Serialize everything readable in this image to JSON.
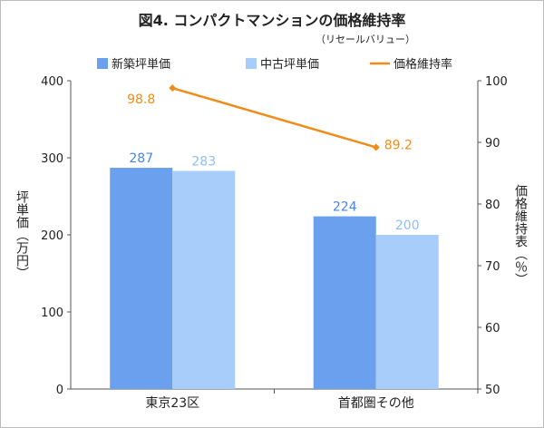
{
  "chart_data": {
    "type": "bar",
    "title": "図4. コンパクトマンションの価格維持率",
    "subtitle": "（リセールバリュー）",
    "categories": [
      "東京23区",
      "首都圏その他"
    ],
    "series": [
      {
        "name": "新築坪単価",
        "type": "bar",
        "axis": "left",
        "color": "#6aa0ee",
        "values": [
          287,
          224
        ]
      },
      {
        "name": "中古坪単価",
        "type": "bar",
        "axis": "left",
        "color": "#a9cdfb",
        "values": [
          283,
          200
        ]
      },
      {
        "name": "価格維持率",
        "type": "line",
        "axis": "right",
        "color": "#f08c1a",
        "values": [
          98.8,
          89.2
        ]
      }
    ],
    "ylabel": "坪単価（万円）",
    "y2label": "価格維持表（％）",
    "ylim": [
      0,
      400
    ],
    "yticks": [
      0,
      100,
      200,
      300,
      400
    ],
    "y2lim": [
      50,
      100
    ],
    "y2ticks": [
      50,
      60,
      70,
      80,
      90,
      100
    ],
    "grid": false,
    "legend": "top"
  }
}
